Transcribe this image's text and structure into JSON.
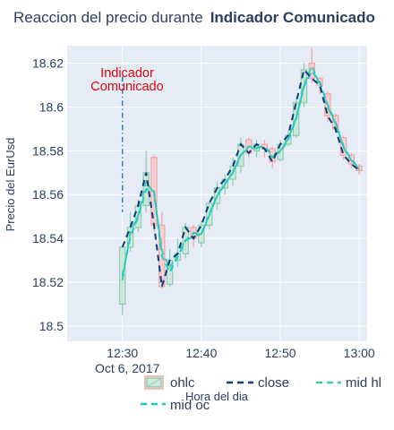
{
  "chart_data": {
    "type": "candlestick",
    "title_prefix": "Reaccion del precio durante",
    "title_bold": "Indicador Comunicado",
    "xlabel": "Hora del dia",
    "ylabel": "Precio del EurUsd",
    "x_date_label": "Oct 6, 2017",
    "ylim": [
      18.493,
      18.628
    ],
    "x_range_minutes": [
      "12:23",
      "13:01"
    ],
    "y_ticks": [
      18.5,
      18.52,
      18.54,
      18.56,
      18.58,
      18.6,
      18.62
    ],
    "y_tick_labels": [
      "18.5",
      "18.52",
      "18.54",
      "18.56",
      "18.58",
      "18.6",
      "18.62"
    ],
    "x_ticks": [
      "12:30",
      "12:40",
      "12:50",
      "13:00"
    ],
    "grid": true,
    "colors": {
      "plot_bg": "#e5ecf6",
      "increasing": "#8fcfb0",
      "decreasing": "#f4a6a6",
      "close_line": "#0d3b7a",
      "mid_hl_line": "#3fc9a5",
      "mid_oc_line": "#19c9c9",
      "annotation": "#e0050a",
      "annotation_line": "#1f77d4"
    },
    "annotation": {
      "lines": [
        "Indicador",
        "Comunicado"
      ],
      "x": "12:30"
    },
    "legend_position": "bottom",
    "series": [
      {
        "name": "ohlc",
        "style": "candlestick"
      },
      {
        "name": "close",
        "style": "dash"
      },
      {
        "name": "mid hl",
        "style": "dash"
      },
      {
        "name": "mid oc",
        "style": "dash"
      }
    ],
    "ohlc": [
      {
        "t": "12:30",
        "o": 18.51,
        "h": 18.537,
        "l": 18.505,
        "c": 18.536
      },
      {
        "t": "12:31",
        "o": 18.536,
        "h": 18.552,
        "l": 18.534,
        "c": 18.545
      },
      {
        "t": "12:32",
        "o": 18.545,
        "h": 18.558,
        "l": 18.543,
        "c": 18.555
      },
      {
        "t": "12:33",
        "o": 18.555,
        "h": 18.58,
        "l": 18.552,
        "c": 18.57
      },
      {
        "t": "12:34",
        "o": 18.577,
        "h": 18.578,
        "l": 18.543,
        "c": 18.546
      },
      {
        "t": "12:35",
        "o": 18.546,
        "h": 18.552,
        "l": 18.517,
        "c": 18.518
      },
      {
        "t": "12:36",
        "o": 18.519,
        "h": 18.535,
        "l": 18.518,
        "c": 18.53
      },
      {
        "t": "12:37",
        "o": 18.53,
        "h": 18.54,
        "l": 18.527,
        "c": 18.533
      },
      {
        "t": "12:38",
        "o": 18.533,
        "h": 18.547,
        "l": 18.531,
        "c": 18.545
      },
      {
        "t": "12:39",
        "o": 18.545,
        "h": 18.546,
        "l": 18.536,
        "c": 18.54
      },
      {
        "t": "12:40",
        "o": 18.538,
        "h": 18.548,
        "l": 18.536,
        "c": 18.546
      },
      {
        "t": "12:41",
        "o": 18.546,
        "h": 18.557,
        "l": 18.544,
        "c": 18.556
      },
      {
        "t": "12:42",
        "o": 18.556,
        "h": 18.566,
        "l": 18.553,
        "c": 18.563
      },
      {
        "t": "12:43",
        "o": 18.563,
        "h": 18.569,
        "l": 18.56,
        "c": 18.567
      },
      {
        "t": "12:44",
        "o": 18.567,
        "h": 18.577,
        "l": 18.564,
        "c": 18.573
      },
      {
        "t": "12:45",
        "o": 18.573,
        "h": 18.586,
        "l": 18.57,
        "c": 18.583
      },
      {
        "t": "12:46",
        "o": 18.585,
        "h": 18.586,
        "l": 18.577,
        "c": 18.579
      },
      {
        "t": "12:47",
        "o": 18.58,
        "h": 18.585,
        "l": 18.577,
        "c": 18.583
      },
      {
        "t": "12:48",
        "o": 18.583,
        "h": 18.585,
        "l": 18.577,
        "c": 18.581
      },
      {
        "t": "12:49",
        "o": 18.581,
        "h": 18.582,
        "l": 18.572,
        "c": 18.575
      },
      {
        "t": "12:50",
        "o": 18.576,
        "h": 18.585,
        "l": 18.575,
        "c": 18.583
      },
      {
        "t": "12:51",
        "o": 18.583,
        "h": 18.589,
        "l": 18.582,
        "c": 18.587
      },
      {
        "t": "12:52",
        "o": 18.587,
        "h": 18.604,
        "l": 18.586,
        "c": 18.602
      },
      {
        "t": "12:53",
        "o": 18.602,
        "h": 18.62,
        "l": 18.6,
        "c": 18.617
      },
      {
        "t": "12:54",
        "o": 18.62,
        "h": 18.627,
        "l": 18.611,
        "c": 18.613
      },
      {
        "t": "12:55",
        "o": 18.613,
        "h": 18.614,
        "l": 18.606,
        "c": 18.61
      },
      {
        "t": "12:56",
        "o": 18.606,
        "h": 18.607,
        "l": 18.593,
        "c": 18.596
      },
      {
        "t": "12:57",
        "o": 18.596,
        "h": 18.597,
        "l": 18.588,
        "c": 18.59
      },
      {
        "t": "12:58",
        "o": 18.586,
        "h": 18.587,
        "l": 18.576,
        "c": 18.578
      },
      {
        "t": "12:59",
        "o": 18.578,
        "h": 18.579,
        "l": 18.572,
        "c": 18.574
      },
      {
        "t": "13:00",
        "o": 18.573,
        "h": 18.574,
        "l": 18.569,
        "c": 18.571
      }
    ]
  }
}
